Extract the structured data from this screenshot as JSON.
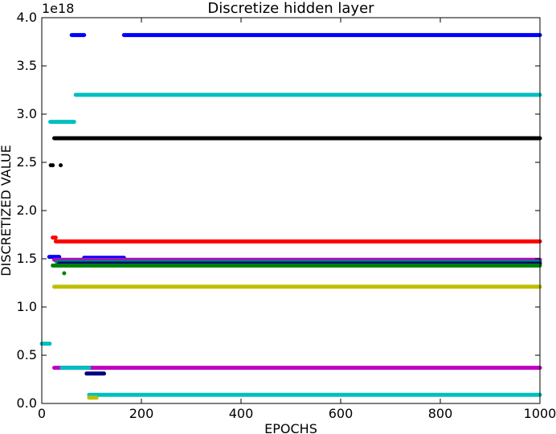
{
  "chart_data": {
    "type": "scatter",
    "title": "Discretize hidden layer",
    "xlabel": "EPOCHS",
    "ylabel": "DISCRETIZED VALUE",
    "offset_label": "1e18",
    "xlim": [
      0,
      1000
    ],
    "ylim": [
      0,
      4.0
    ],
    "x_ticks": [
      0,
      200,
      400,
      600,
      800,
      1000
    ],
    "x_tick_labels": [
      "0",
      "200",
      "400",
      "600",
      "800",
      "1000"
    ],
    "y_ticks": [
      0,
      0.5,
      1.0,
      1.5,
      2.0,
      2.5,
      3.0,
      3.5,
      4.0
    ],
    "y_tick_labels": [
      "0.0",
      "0.5",
      "1.0",
      "1.5",
      "2.0",
      "2.5",
      "3.0",
      "3.5",
      "4.0"
    ],
    "grid": false,
    "legend": "none",
    "series": [
      {
        "color": "#0000ff",
        "segments": [
          [
            60,
            85,
            3.82
          ],
          [
            165,
            1000,
            3.82
          ]
        ]
      },
      {
        "color": "#00bfbf",
        "segments": [
          [
            17,
            65,
            2.92
          ],
          [
            68,
            1000,
            3.2
          ]
        ]
      },
      {
        "color": "#000000",
        "segments": [
          [
            25,
            1000,
            2.75
          ]
        ],
        "points": [
          [
            18,
            2.47
          ],
          [
            22,
            2.47
          ],
          [
            38,
            2.47
          ]
        ]
      },
      {
        "color": "#ff0000",
        "segments": [
          [
            22,
            28,
            1.72
          ],
          [
            28,
            1000,
            1.68
          ]
        ]
      },
      {
        "color": "#0000ff",
        "segments": [
          [
            15,
            35,
            1.52
          ],
          [
            85,
            165,
            1.51
          ]
        ]
      },
      {
        "color": "#bf00bf",
        "segments": [
          [
            25,
            1000,
            1.49
          ]
        ]
      },
      {
        "color": "#008080",
        "segments": [
          [
            30,
            1000,
            1.47
          ]
        ]
      },
      {
        "color": "#000080",
        "segments": [
          [
            35,
            1000,
            1.45
          ]
        ]
      },
      {
        "color": "#008000",
        "segments": [
          [
            22,
            1000,
            1.43
          ]
        ],
        "points": [
          [
            45,
            1.35
          ]
        ]
      },
      {
        "color": "#bfbf00",
        "segments": [
          [
            25,
            1000,
            1.21
          ]
        ]
      },
      {
        "color": "#bf00bf",
        "segments": [
          [
            25,
            1000,
            0.37
          ]
        ]
      },
      {
        "color": "#00bfbf",
        "segments": [
          [
            0,
            16,
            0.62
          ],
          [
            40,
            95,
            0.37
          ],
          [
            95,
            1000,
            0.09
          ]
        ]
      },
      {
        "color": "#000080",
        "segments": [
          [
            90,
            125,
            0.31
          ]
        ]
      },
      {
        "color": "#bfbf00",
        "segments": [
          [
            95,
            110,
            0.06
          ]
        ]
      }
    ]
  }
}
